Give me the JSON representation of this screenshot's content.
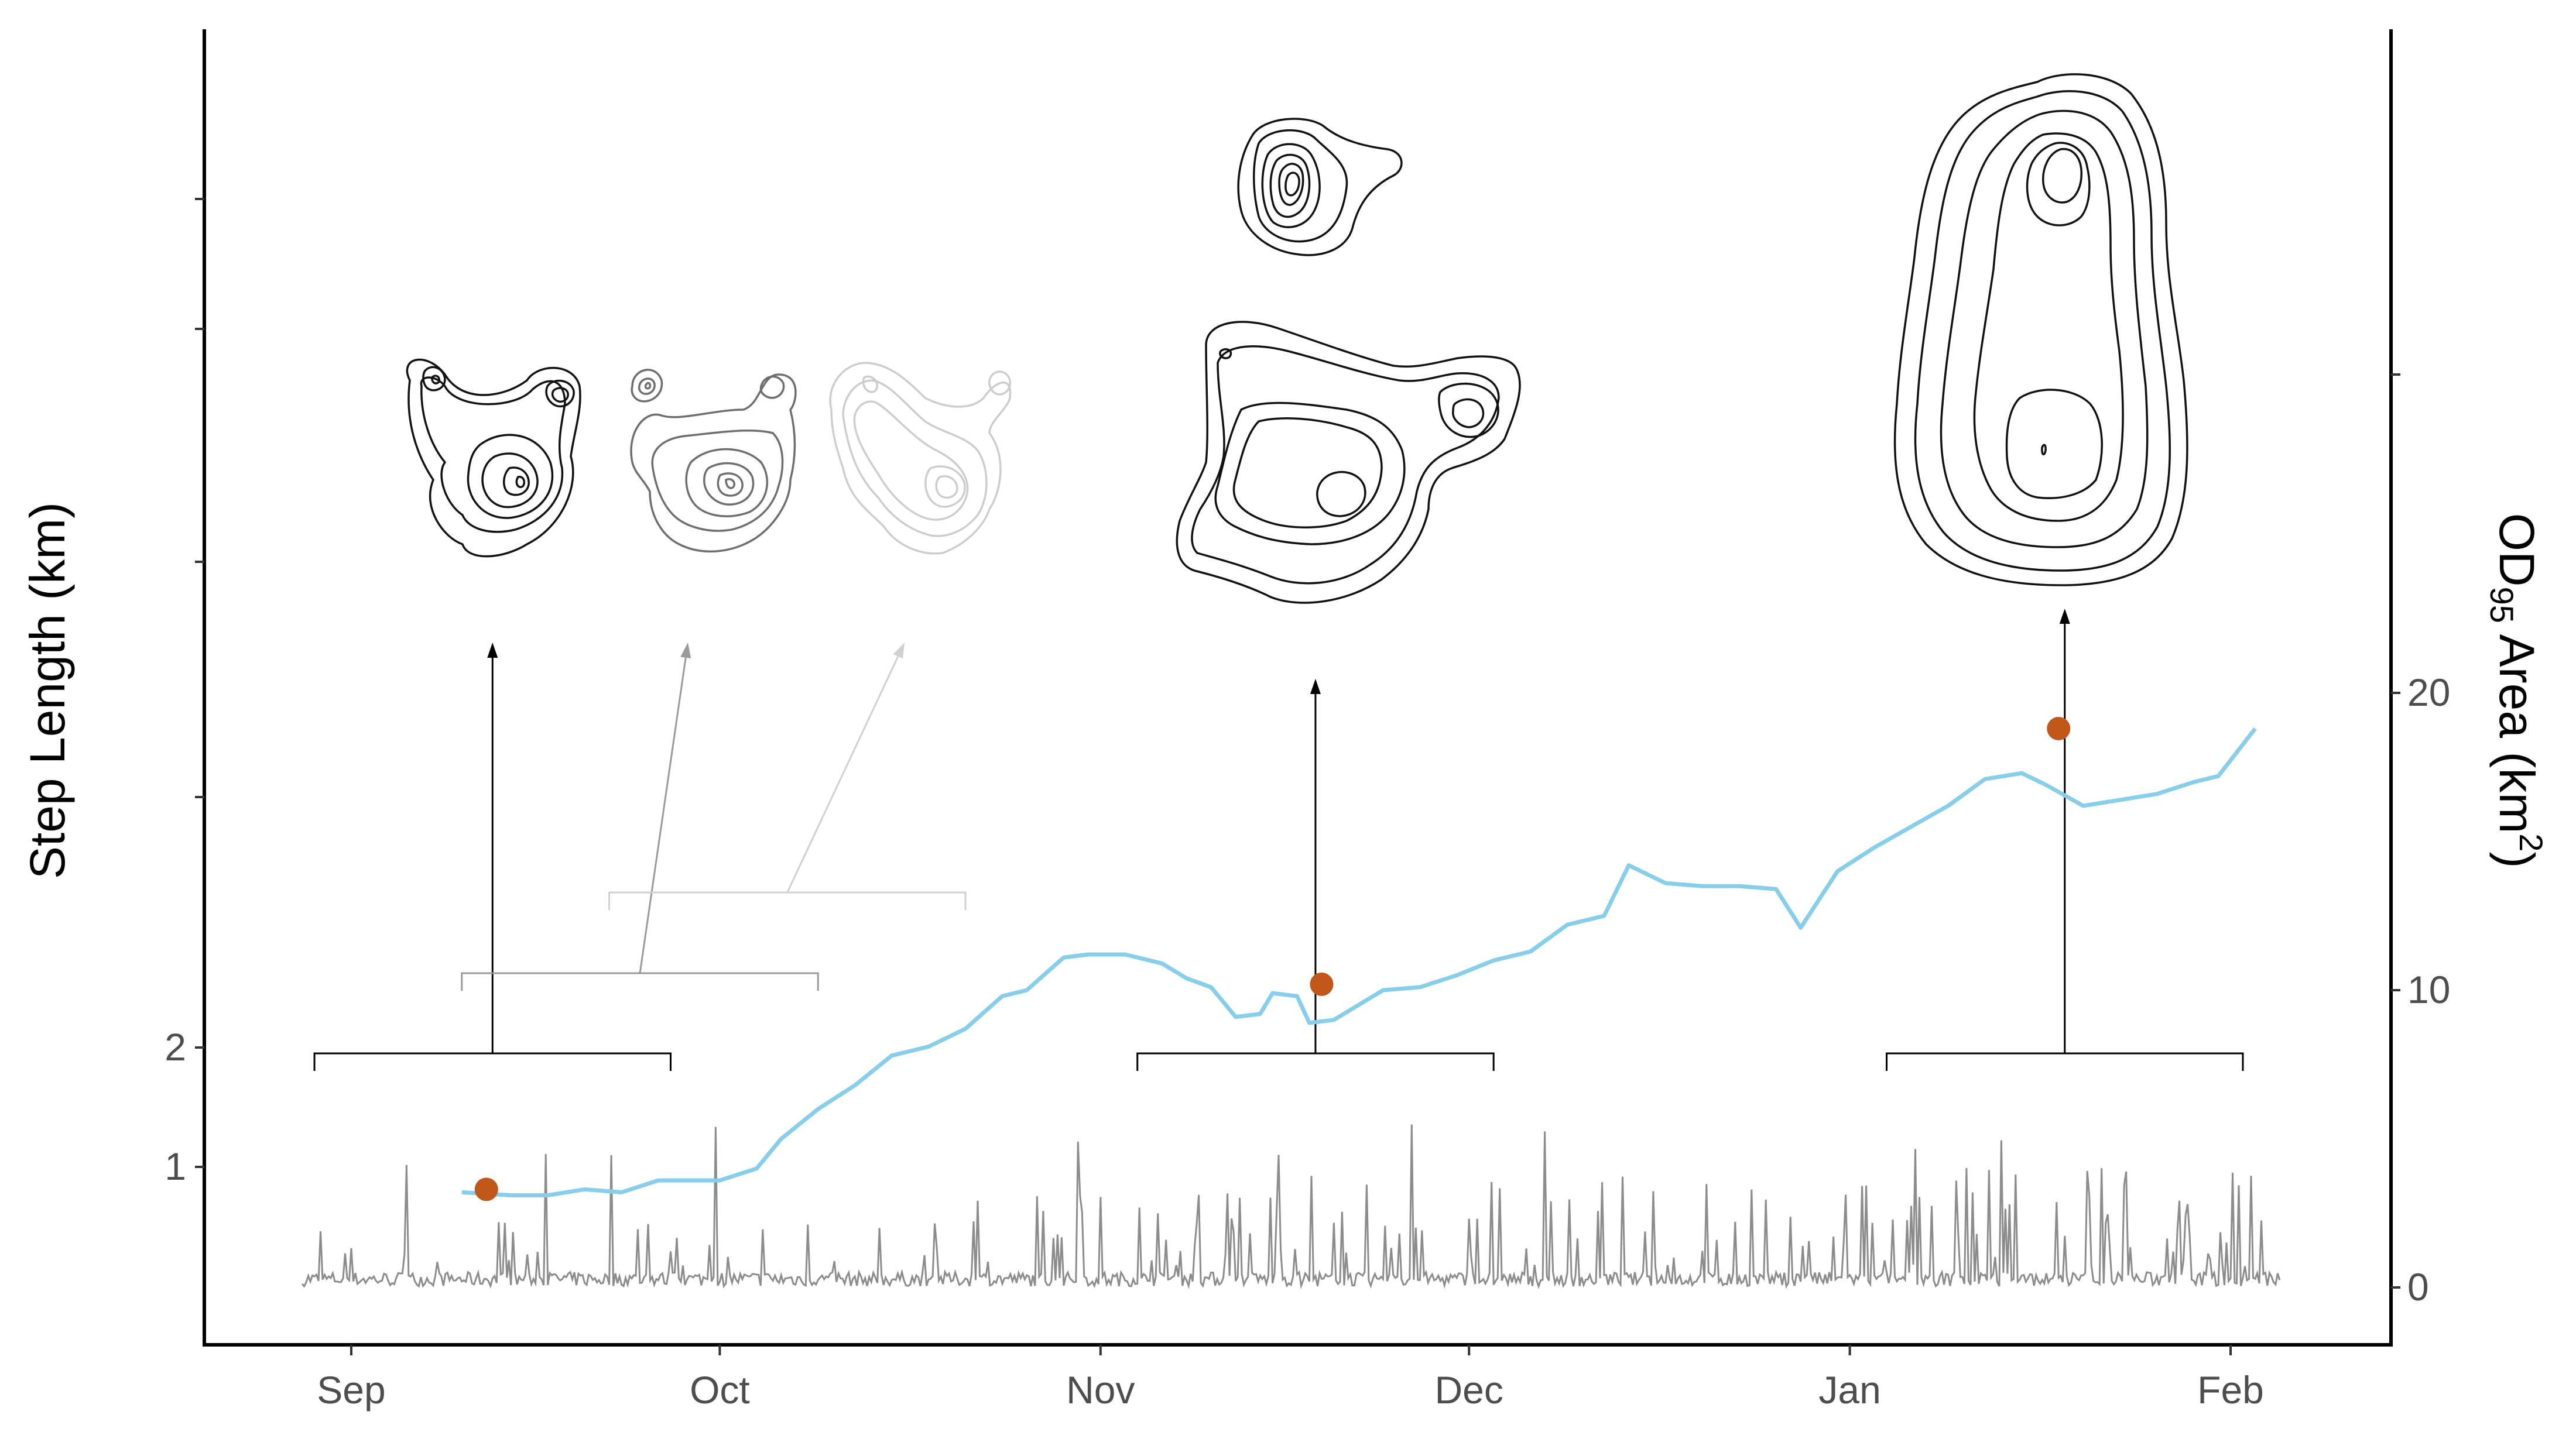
{
  "chart_data": {
    "type": "line",
    "ylabel_left": "Step Length (km)",
    "ylabel_right_main": "OD",
    "ylabel_right_sub": "95",
    "ylabel_right_rest": " Area (km",
    "ylabel_right_sup": "2",
    "ylabel_right_close": ")",
    "left_ticks": [
      {
        "value": 1,
        "label": "1"
      },
      {
        "value": 2,
        "label": "2"
      }
    ],
    "right_ticks": [
      {
        "value": 0,
        "label": "0"
      },
      {
        "value": 10,
        "label": "10"
      },
      {
        "value": 20,
        "label": "20"
      }
    ],
    "x_ticks": [
      {
        "date": "2021-09-01",
        "label": "Sep"
      },
      {
        "date": "2021-10-01",
        "label": "Oct"
      },
      {
        "date": "2021-11-01",
        "label": "Nov"
      },
      {
        "date": "2021-12-01",
        "label": "Dec"
      },
      {
        "date": "2022-01-01",
        "label": "Jan"
      },
      {
        "date": "2022-02-01",
        "label": "Feb"
      }
    ],
    "x_range": [
      "2021-08-24",
      "2022-02-10"
    ],
    "ylim_left": [
      0,
      2.2
    ],
    "ylim_right": [
      0,
      30
    ],
    "colors": {
      "area_line": "#87ceeb",
      "points": "#c2571a",
      "step_line": "#8c8c8c",
      "axis": "#000000"
    },
    "series": [
      {
        "type": "line",
        "axis": "right",
        "values": [
          [
            "2021-09-10",
            3.2
          ],
          [
            "2021-09-14",
            3.1
          ],
          [
            "2021-09-17",
            3.1
          ],
          [
            "2021-09-20",
            3.3
          ],
          [
            "2021-09-23",
            3.2
          ],
          [
            "2021-09-26",
            3.6
          ],
          [
            "2021-09-29",
            3.6
          ],
          [
            "2021-10-01",
            3.6
          ],
          [
            "2021-10-04",
            4.0
          ],
          [
            "2021-10-06",
            5.0
          ],
          [
            "2021-10-09",
            6.0
          ],
          [
            "2021-10-12",
            6.8
          ],
          [
            "2021-10-15",
            7.8
          ],
          [
            "2021-10-18",
            8.1
          ],
          [
            "2021-10-21",
            8.7
          ],
          [
            "2021-10-24",
            9.8
          ],
          [
            "2021-10-26",
            10.0
          ],
          [
            "2021-10-29",
            11.1
          ],
          [
            "2021-10-31",
            11.2
          ],
          [
            "2021-11-03",
            11.2
          ],
          [
            "2021-11-06",
            10.9
          ],
          [
            "2021-11-08",
            10.4
          ],
          [
            "2021-11-10",
            10.1
          ],
          [
            "2021-11-12",
            9.1
          ],
          [
            "2021-11-14",
            9.2
          ],
          [
            "2021-11-15",
            9.9
          ],
          [
            "2021-11-17",
            9.8
          ],
          [
            "2021-11-18",
            8.9
          ],
          [
            "2021-11-20",
            9.0
          ],
          [
            "2021-11-24",
            10.0
          ],
          [
            "2021-11-27",
            10.1
          ],
          [
            "2021-11-30",
            10.5
          ],
          [
            "2021-12-03",
            11.0
          ],
          [
            "2021-12-06",
            11.3
          ],
          [
            "2021-12-09",
            12.2
          ],
          [
            "2021-12-12",
            12.5
          ],
          [
            "2021-12-14",
            14.2
          ],
          [
            "2021-12-17",
            13.6
          ],
          [
            "2021-12-20",
            13.5
          ],
          [
            "2021-12-23",
            13.5
          ],
          [
            "2021-12-26",
            13.4
          ],
          [
            "2021-12-28",
            12.1
          ],
          [
            "2021-12-31",
            14.0
          ],
          [
            "2022-01-03",
            14.8
          ],
          [
            "2022-01-06",
            15.5
          ],
          [
            "2022-01-09",
            16.2
          ],
          [
            "2022-01-12",
            17.1
          ],
          [
            "2022-01-15",
            17.3
          ],
          [
            "2022-01-17",
            16.9
          ],
          [
            "2022-01-20",
            16.2
          ],
          [
            "2022-01-23",
            16.4
          ],
          [
            "2022-01-26",
            16.6
          ],
          [
            "2022-01-29",
            17.0
          ],
          [
            "2022-01-31",
            17.2
          ],
          [
            "2022-02-03",
            18.8
          ]
        ]
      }
    ],
    "points": [
      {
        "date": "2021-09-12",
        "value": 3.3
      },
      {
        "date": "2021-11-19",
        "value": 10.2
      },
      {
        "date": "2022-01-18",
        "value": 18.8
      }
    ],
    "contour_arrows": [
      {
        "date": "2021-09-12",
        "from": "2021-08-29",
        "to": "2021-09-27",
        "shade": "#000000"
      },
      {
        "date": "2021-09-28",
        "from": "2021-09-10",
        "to": "2021-10-09",
        "shade": "#9a9a9a"
      },
      {
        "date": "2021-10-14",
        "from": "2021-09-22",
        "to": "2021-10-21",
        "shade": "#d0d0d0"
      },
      {
        "date": "2021-11-19",
        "from": "2021-11-04",
        "to": "2021-12-03",
        "shade": "#000000"
      },
      {
        "date": "2022-01-18",
        "from": "2022-01-04",
        "to": "2022-02-02",
        "shade": "#000000"
      }
    ]
  }
}
